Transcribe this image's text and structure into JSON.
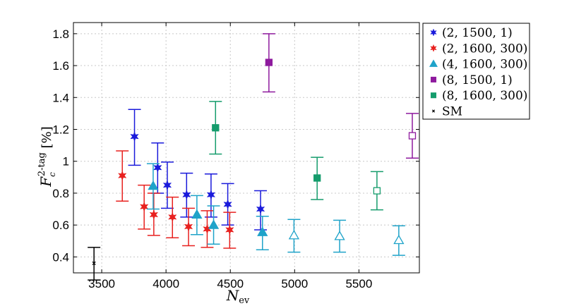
{
  "chart_data": {
    "type": "scatter",
    "xlabel": "N_ev",
    "ylabel": "F_c^{2-tag} [%]",
    "xlim": [
      3280,
      5970
    ],
    "ylim": [
      0.3,
      1.87
    ],
    "xticks": [
      "3500",
      "4000",
      "4500",
      "5000",
      "5500"
    ],
    "yticks": [
      "0.4",
      "0.6",
      "0.8",
      "1",
      "1.2",
      "1.4",
      "1.6",
      "1.8"
    ],
    "grid": true,
    "legend_position": "top-right, outside plot",
    "series": [
      {
        "name": "(2, 1500, 1)",
        "marker": "star",
        "color": "#1a1adb",
        "points": [
          {
            "x": 3755,
            "y": 1.155,
            "lo": 0.975,
            "hi": 1.325,
            "filled": true
          },
          {
            "x": 3935,
            "y": 0.96,
            "lo": 0.8,
            "hi": 1.115,
            "filled": true
          },
          {
            "x": 4010,
            "y": 0.85,
            "lo": 0.705,
            "hi": 0.995,
            "filled": true
          },
          {
            "x": 4160,
            "y": 0.79,
            "lo": 0.65,
            "hi": 0.925,
            "filled": true
          },
          {
            "x": 4350,
            "y": 0.79,
            "lo": 0.65,
            "hi": 0.92,
            "filled": true
          },
          {
            "x": 4480,
            "y": 0.73,
            "lo": 0.6,
            "hi": 0.86,
            "filled": true
          },
          {
            "x": 4735,
            "y": 0.7,
            "lo": 0.57,
            "hi": 0.815,
            "filled": true
          }
        ]
      },
      {
        "name": "(2, 1600, 300)",
        "marker": "star",
        "color": "#e8211f",
        "points": [
          {
            "x": 3660,
            "y": 0.91,
            "lo": 0.75,
            "hi": 1.065,
            "filled": true
          },
          {
            "x": 3830,
            "y": 0.715,
            "lo": 0.575,
            "hi": 0.85,
            "filled": true
          },
          {
            "x": 3905,
            "y": 0.665,
            "lo": 0.535,
            "hi": 0.8,
            "filled": true
          },
          {
            "x": 4050,
            "y": 0.65,
            "lo": 0.52,
            "hi": 0.775,
            "filled": true
          },
          {
            "x": 4175,
            "y": 0.59,
            "lo": 0.47,
            "hi": 0.705,
            "filled": true
          },
          {
            "x": 4320,
            "y": 0.575,
            "lo": 0.46,
            "hi": 0.69,
            "filled": true
          },
          {
            "x": 4495,
            "y": 0.57,
            "lo": 0.455,
            "hi": 0.68,
            "filled": true
          }
        ]
      },
      {
        "name": "(4, 1600, 300)",
        "marker": "triangle",
        "color": "#1fa3c9",
        "points": [
          {
            "x": 3900,
            "y": 0.845,
            "lo": 0.7,
            "hi": 0.985,
            "filled": true
          },
          {
            "x": 4240,
            "y": 0.665,
            "lo": 0.54,
            "hi": 0.785,
            "filled": true
          },
          {
            "x": 4370,
            "y": 0.6,
            "lo": 0.48,
            "hi": 0.72,
            "filled": true
          },
          {
            "x": 4750,
            "y": 0.555,
            "lo": 0.445,
            "hi": 0.655,
            "filled": true
          },
          {
            "x": 4995,
            "y": 0.535,
            "lo": 0.43,
            "hi": 0.635,
            "filled": false
          },
          {
            "x": 5350,
            "y": 0.53,
            "lo": 0.43,
            "hi": 0.63,
            "filled": false
          },
          {
            "x": 5810,
            "y": 0.505,
            "lo": 0.41,
            "hi": 0.595,
            "filled": false
          }
        ]
      },
      {
        "name": "(8, 1500, 1)",
        "marker": "square",
        "color": "#8e1a9e",
        "points": [
          {
            "x": 4800,
            "y": 1.62,
            "lo": 1.435,
            "hi": 1.8,
            "filled": true
          },
          {
            "x": 5915,
            "y": 1.16,
            "lo": 1.02,
            "hi": 1.3,
            "filled": false
          }
        ]
      },
      {
        "name": "(8, 1600, 300)",
        "marker": "square",
        "color": "#159c6c",
        "points": [
          {
            "x": 4385,
            "y": 1.21,
            "lo": 1.045,
            "hi": 1.375,
            "filled": true
          },
          {
            "x": 5175,
            "y": 0.895,
            "lo": 0.76,
            "hi": 1.025,
            "filled": true
          },
          {
            "x": 5640,
            "y": 0.815,
            "lo": 0.695,
            "hi": 0.935,
            "filled": false
          }
        ]
      },
      {
        "name": "SM",
        "marker": "cross",
        "color": "#000000",
        "points": [
          {
            "x": 3440,
            "y": 0.36,
            "lo": 0.255,
            "hi": 0.46,
            "filled": true
          }
        ]
      }
    ]
  }
}
